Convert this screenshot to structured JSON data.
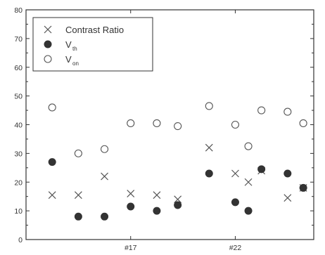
{
  "chart_data": {
    "type": "scatter",
    "xlim": [
      0,
      11
    ],
    "ylim": [
      0,
      80
    ],
    "y_ticks": [
      0,
      10,
      20,
      30,
      40,
      50,
      60,
      70,
      80
    ],
    "x_tick_labels": [
      {
        "x": 4,
        "label": "#17"
      },
      {
        "x": 8,
        "label": "#22"
      }
    ],
    "grid": false,
    "legend_position": "top-left",
    "series": [
      {
        "name": "Contrast Ratio",
        "marker": "cross",
        "color": "#555555",
        "points": [
          [
            1,
            15.5
          ],
          [
            2,
            15.5
          ],
          [
            3,
            22
          ],
          [
            4,
            16
          ],
          [
            5,
            15.5
          ],
          [
            5.8,
            14
          ],
          [
            7,
            32
          ],
          [
            8,
            23
          ],
          [
            8.5,
            20
          ],
          [
            9,
            24
          ],
          [
            10,
            14.5
          ],
          [
            10.6,
            18
          ]
        ]
      },
      {
        "name": "V",
        "name_sub": "th",
        "marker": "filled-circle",
        "color": "#333333",
        "points": [
          [
            1,
            27
          ],
          [
            2,
            8
          ],
          [
            3,
            8
          ],
          [
            4,
            11.5
          ],
          [
            5,
            10
          ],
          [
            5.8,
            12
          ],
          [
            7,
            23
          ],
          [
            8,
            13
          ],
          [
            8.5,
            10
          ],
          [
            9,
            24.5
          ],
          [
            10,
            23
          ],
          [
            10.6,
            18
          ]
        ]
      },
      {
        "name": "V",
        "name_sub": "on",
        "marker": "open-circle",
        "color": "#555555",
        "points": [
          [
            1,
            46
          ],
          [
            2,
            30
          ],
          [
            3,
            31.5
          ],
          [
            4,
            40.5
          ],
          [
            5,
            40.5
          ],
          [
            5.8,
            39.5
          ],
          [
            7,
            46.5
          ],
          [
            8,
            40
          ],
          [
            8.5,
            32.5
          ],
          [
            9,
            45
          ],
          [
            10,
            44.5
          ],
          [
            10.6,
            40.5
          ]
        ]
      }
    ]
  }
}
